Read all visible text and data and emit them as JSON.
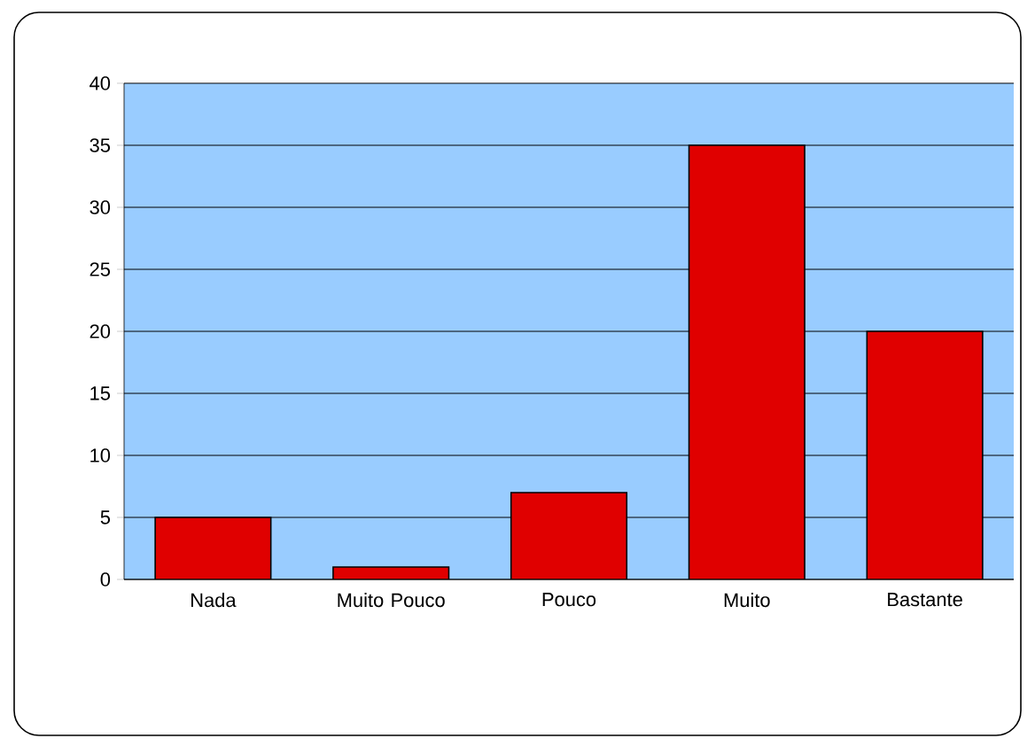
{
  "chart_data": {
    "type": "bar",
    "categories": [
      "Nada",
      "Muito Pouco",
      "Pouco",
      "Muito",
      "Bastante"
    ],
    "values": [
      5,
      1,
      7,
      35,
      20
    ],
    "color": "#e00000",
    "ylim": [
      0,
      40
    ],
    "yticks": [
      0,
      5,
      10,
      15,
      20,
      25,
      30,
      35,
      40
    ],
    "grid": "y"
  }
}
